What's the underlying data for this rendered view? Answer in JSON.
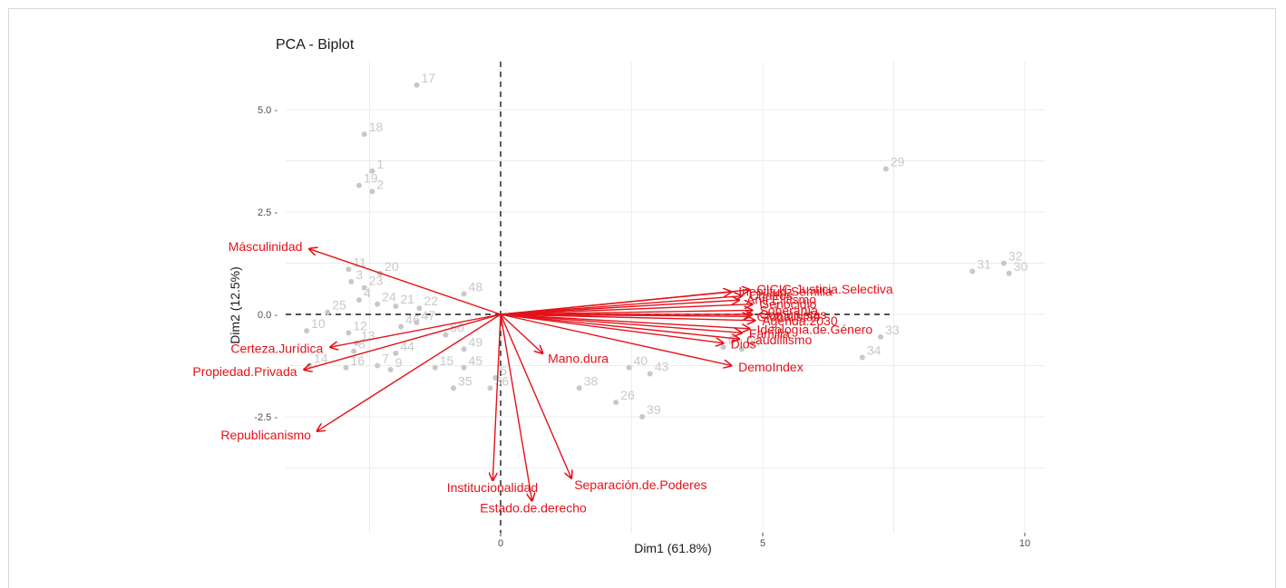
{
  "chart_data": {
    "type": "scatter",
    "title": "PCA - Biplot",
    "xlabel": "Dim1 (61.8%)",
    "ylabel": "Dim2 (12.5%)",
    "xlim": [
      -5.3,
      10.8
    ],
    "ylim": [
      -5.0,
      6.3
    ],
    "x_ticks": [
      0,
      5,
      10
    ],
    "x_tick_labels": [
      "0",
      "5",
      "10"
    ],
    "y_ticks": [
      -2.5,
      0,
      2.5,
      5
    ],
    "y_tick_labels": [
      "-2.5 -",
      "0.0 -",
      "2.5 -",
      "5.0 -"
    ],
    "grid": true,
    "colors": {
      "individuals": "#c8c8c8",
      "variables": "#e3131b",
      "grid": "#ececec",
      "ref_line": "#1a1a1a"
    },
    "individuals": [
      {
        "label": "17",
        "x": -1.6,
        "y": 5.6
      },
      {
        "label": "18",
        "x": -2.6,
        "y": 4.4
      },
      {
        "label": "1",
        "x": -2.45,
        "y": 3.5
      },
      {
        "label": "19",
        "x": -2.7,
        "y": 3.15
      },
      {
        "label": "2",
        "x": -2.45,
        "y": 3.0
      },
      {
        "label": "29",
        "x": 7.35,
        "y": 3.55
      },
      {
        "label": "32",
        "x": 9.6,
        "y": 1.25
      },
      {
        "label": "31",
        "x": 9.0,
        "y": 1.05
      },
      {
        "label": "30",
        "x": 9.7,
        "y": 1.0
      },
      {
        "label": "11",
        "x": -2.9,
        "y": 1.1
      },
      {
        "label": "20",
        "x": -2.3,
        "y": 1.0
      },
      {
        "label": "3",
        "x": -2.85,
        "y": 0.8
      },
      {
        "label": "23",
        "x": -2.6,
        "y": 0.65
      },
      {
        "label": "48",
        "x": -0.7,
        "y": 0.5
      },
      {
        "label": "4",
        "x": -2.7,
        "y": 0.35
      },
      {
        "label": "24",
        "x": -2.35,
        "y": 0.25
      },
      {
        "label": "21",
        "x": -2.0,
        "y": 0.2
      },
      {
        "label": "22",
        "x": -1.55,
        "y": 0.15
      },
      {
        "label": "25",
        "x": -3.3,
        "y": 0.05
      },
      {
        "label": "47",
        "x": -1.6,
        "y": -0.2
      },
      {
        "label": "46",
        "x": -1.9,
        "y": -0.3
      },
      {
        "label": "10",
        "x": -3.7,
        "y": -0.4
      },
      {
        "label": "12",
        "x": -2.9,
        "y": -0.45
      },
      {
        "label": "50",
        "x": -1.05,
        "y": -0.5
      },
      {
        "label": "13",
        "x": -2.75,
        "y": -0.7
      },
      {
        "label": "8",
        "x": -2.8,
        "y": -0.9
      },
      {
        "label": "44",
        "x": -2.0,
        "y": -0.95
      },
      {
        "label": "49",
        "x": -0.7,
        "y": -0.85
      },
      {
        "label": "16",
        "x": -2.95,
        "y": -1.3
      },
      {
        "label": "7",
        "x": -2.35,
        "y": -1.25
      },
      {
        "label": "9",
        "x": -2.1,
        "y": -1.35
      },
      {
        "label": "15",
        "x": -1.25,
        "y": -1.3
      },
      {
        "label": "45",
        "x": -0.7,
        "y": -1.3
      },
      {
        "label": "14",
        "x": -3.65,
        "y": -1.25
      },
      {
        "label": "35",
        "x": -0.9,
        "y": -1.8
      },
      {
        "label": "36",
        "x": -0.2,
        "y": -1.8
      },
      {
        "label": "5",
        "x": -0.1,
        "y": -1.55
      },
      {
        "label": "38",
        "x": 1.5,
        "y": -1.8
      },
      {
        "label": "26",
        "x": 2.2,
        "y": -2.15
      },
      {
        "label": "40",
        "x": 2.45,
        "y": -1.3
      },
      {
        "label": "43",
        "x": 2.85,
        "y": -1.45
      },
      {
        "label": "39",
        "x": 2.7,
        "y": -2.5
      },
      {
        "label": "28",
        "x": 4.6,
        "y": -0.85
      },
      {
        "label": "6",
        "x": 4.25,
        "y": -0.8
      },
      {
        "label": "33",
        "x": 7.25,
        "y": -0.55
      },
      {
        "label": "34",
        "x": 6.9,
        "y": -1.05
      }
    ],
    "variables": [
      {
        "label": "Másculinidad",
        "x": -3.65,
        "y": 1.6
      },
      {
        "label": "Certeza.Jurídica",
        "x": -3.25,
        "y": -0.8
      },
      {
        "label": "Propiedad.Privada",
        "x": -3.75,
        "y": -1.35
      },
      {
        "label": "Republicanismo",
        "x": -3.5,
        "y": -2.85
      },
      {
        "label": "Institucionalidad",
        "x": -0.15,
        "y": -4.05
      },
      {
        "label": "Estado.de.derecho",
        "x": 0.6,
        "y": -4.55
      },
      {
        "label": "Separación.de.Poderes",
        "x": 1.35,
        "y": -4.0
      },
      {
        "label": "Mano.dura",
        "x": 0.8,
        "y": -0.95
      },
      {
        "label": "CICIG.Justicia.Selectiva",
        "x": 4.75,
        "y": 0.6
      },
      {
        "label": "Ineptitud.Semilla",
        "x": 4.4,
        "y": 0.55
      },
      {
        "label": "Chairos",
        "x": 4.6,
        "y": 0.45
      },
      {
        "label": "Anti.Elitismo",
        "x": 4.55,
        "y": 0.35
      },
      {
        "label": "Genocidio",
        "x": 4.8,
        "y": 0.25
      },
      {
        "label": "Soberanía",
        "x": 4.8,
        "y": 0.1
      },
      {
        "label": "Comunistas",
        "x": 4.8,
        "y": 0.0
      },
      {
        "label": "Globalistas",
        "x": 4.75,
        "y": -0.05
      },
      {
        "label": "Agenda.2030",
        "x": 4.85,
        "y": -0.15
      },
      {
        "label": "Ideología.de.Género",
        "x": 4.75,
        "y": -0.35
      },
      {
        "label": "Familia",
        "x": 4.6,
        "y": -0.45
      },
      {
        "label": "Caudillismo",
        "x": 4.55,
        "y": -0.6
      },
      {
        "label": "Dios",
        "x": 4.25,
        "y": -0.7
      },
      {
        "label": "DemoIndex",
        "x": 4.4,
        "y": -1.25
      }
    ]
  }
}
